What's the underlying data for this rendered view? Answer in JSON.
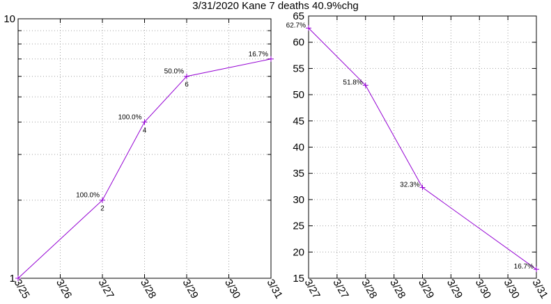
{
  "title": "3/31/2020 Kane 7 deaths 40.9%chg",
  "colors": {
    "series": "#9400d3",
    "grid": "#a0a0a0",
    "axis": "#000000"
  },
  "chart_data": [
    {
      "type": "line",
      "yscale": "log",
      "ylim": [
        1,
        10
      ],
      "yticks": [
        "1",
        "10"
      ],
      "x_ticks": [
        "3/25",
        "3/26",
        "3/27",
        "3/28",
        "3/29",
        "3/30",
        "3/31"
      ],
      "grid": true,
      "points": [
        {
          "x": "3/25",
          "y": 1
        },
        {
          "x": "3/27",
          "y": 2,
          "value_label": "2",
          "pct_label": "100.0%"
        },
        {
          "x": "3/28",
          "y": 4,
          "value_label": "4",
          "pct_label": "100.0%"
        },
        {
          "x": "3/29",
          "y": 6,
          "value_label": "6",
          "pct_label": "50.0%"
        },
        {
          "x": "3/31",
          "y": 7,
          "pct_label": "16.7%"
        }
      ]
    },
    {
      "type": "line",
      "ylim": [
        15,
        65
      ],
      "yticks": [
        "15",
        "20",
        "25",
        "30",
        "35",
        "40",
        "45",
        "50",
        "55",
        "60",
        "65"
      ],
      "x_ticks": [
        "3/27",
        "3/27",
        "3/28",
        "3/28",
        "3/29",
        "3/29",
        "3/30",
        "3/30",
        "3/31"
      ],
      "grid": true,
      "points": [
        {
          "x": 0,
          "y": 62.7,
          "pct_label": "62.7%"
        },
        {
          "x": 1,
          "y": 51.8,
          "pct_label": "51.8%"
        },
        {
          "x": 2,
          "y": 32.3,
          "pct_label": "32.3%"
        },
        {
          "x": 4,
          "y": 16.7,
          "pct_label": "16.7%"
        }
      ],
      "x_max": 4
    }
  ]
}
